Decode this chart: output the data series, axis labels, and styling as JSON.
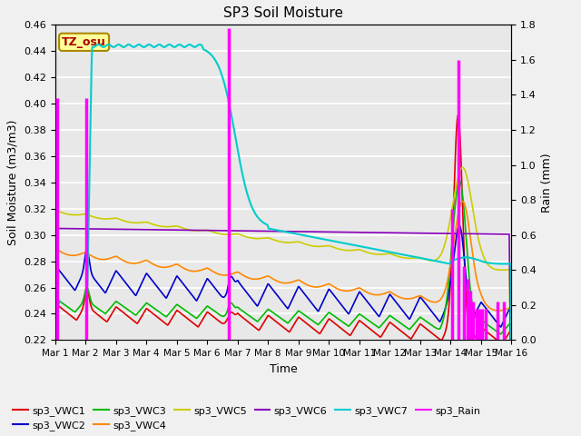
{
  "title": "SP3 Soil Moisture",
  "xlabel": "Time",
  "ylabel_left": "Soil Moisture (m3/m3)",
  "ylabel_right": "Rain (mm)",
  "ylim_left": [
    0.22,
    0.46
  ],
  "ylim_right": [
    0.0,
    1.8
  ],
  "xlim": [
    0,
    15
  ],
  "xtick_labels": [
    "Mar 1",
    "Mar 2",
    "Mar 3",
    "Mar 4",
    "Mar 5",
    "Mar 6",
    "Mar 7",
    "Mar 8",
    "Mar 9",
    "Mar 10",
    "Mar 11",
    "Mar 12",
    "Mar 13",
    "Mar 14",
    "Mar 15",
    "Mar 16"
  ],
  "xtick_positions": [
    0,
    1,
    2,
    3,
    4,
    5,
    6,
    7,
    8,
    9,
    10,
    11,
    12,
    13,
    14,
    15
  ],
  "bg_color": "#e8e8e8",
  "fig_color": "#f0f0f0",
  "text_box_label": "TZ_osu",
  "text_box_color": "#aa0000",
  "text_box_bg": "#ffff99",
  "text_box_edge": "#aa8800",
  "series_colors": {
    "sp3_VWC1": "#dd0000",
    "sp3_VWC2": "#0000cc",
    "sp3_VWC3": "#00bb00",
    "sp3_VWC4": "#ff8800",
    "sp3_VWC5": "#cccc00",
    "sp3_VWC6": "#8800bb",
    "sp3_VWC7": "#00cccc",
    "sp3_Rain": "#ff00ff"
  },
  "rain_times": [
    0.07,
    1.02,
    5.72,
    13.05,
    13.25,
    13.45,
    13.55,
    13.65,
    13.75,
    13.85,
    13.95,
    14.05,
    14.15,
    14.55,
    14.75
  ],
  "rain_heights": [
    1.38,
    1.38,
    1.78,
    0.75,
    1.6,
    0.42,
    0.35,
    0.28,
    0.22,
    0.18,
    0.18,
    0.18,
    0.18,
    0.22,
    0.22
  ],
  "yticks_left": [
    0.22,
    0.24,
    0.26,
    0.28,
    0.3,
    0.32,
    0.34,
    0.36,
    0.38,
    0.4,
    0.42,
    0.44,
    0.46
  ],
  "yticks_right": [
    0.0,
    0.2,
    0.4,
    0.6,
    0.8,
    1.0,
    1.2,
    1.4,
    1.6,
    1.8
  ]
}
